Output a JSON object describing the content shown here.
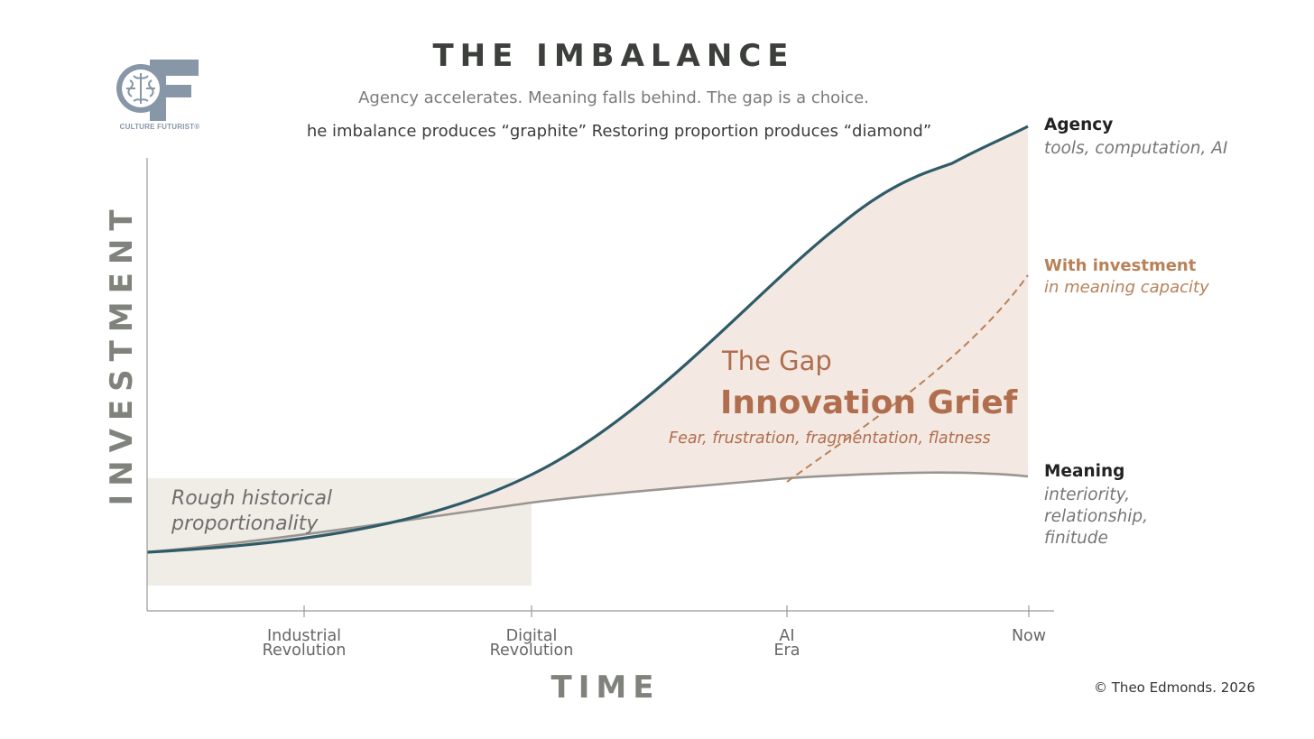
{
  "title": "THE IMBALANCE",
  "subtitle": "Agency accelerates. Meaning falls behind. The gap is a choice.",
  "subline": "he imbalance produces “graphite”  Restoring proportion produces “diamond”",
  "logo": {
    "text": "CULTURE FUTURIST®",
    "icon": "brain-icon",
    "color": "#8797a7"
  },
  "copyright": "© Theo Edmonds. 2026",
  "diagram": {
    "y_axis_label": "INVESTMENT",
    "x_axis_label": "TIME",
    "x_ticks": [
      {
        "lines": [
          "Industrial",
          "Revolution"
        ]
      },
      {
        "lines": [
          "Digital",
          "Revolution"
        ]
      },
      {
        "lines": [
          "AI",
          "Era"
        ]
      },
      {
        "lines": [
          "Now"
        ]
      }
    ],
    "historical_region": {
      "lines": [
        "Rough historical",
        "proportionality"
      ]
    },
    "gap": {
      "heading": "The Gap",
      "title": "Innovation Grief",
      "caption": "Fear, frustration, fragmentation, flatness"
    },
    "series": {
      "agency": {
        "name": "Agency",
        "desc": [
          "tools, computation, AI"
        ],
        "color": "#2f5b68"
      },
      "meaning": {
        "name": "Meaning",
        "desc": [
          "interiority,",
          "relationship,",
          "finitude"
        ],
        "color": "#999692"
      },
      "investment": {
        "name": "With investment",
        "desc": [
          "in meaning capacity"
        ],
        "color": "#b98158"
      }
    },
    "colors": {
      "gap_fill": "#f4e8e2",
      "historical_fill": "#efede6",
      "axis": "#999999",
      "gap_text": "#b06e4e"
    }
  }
}
